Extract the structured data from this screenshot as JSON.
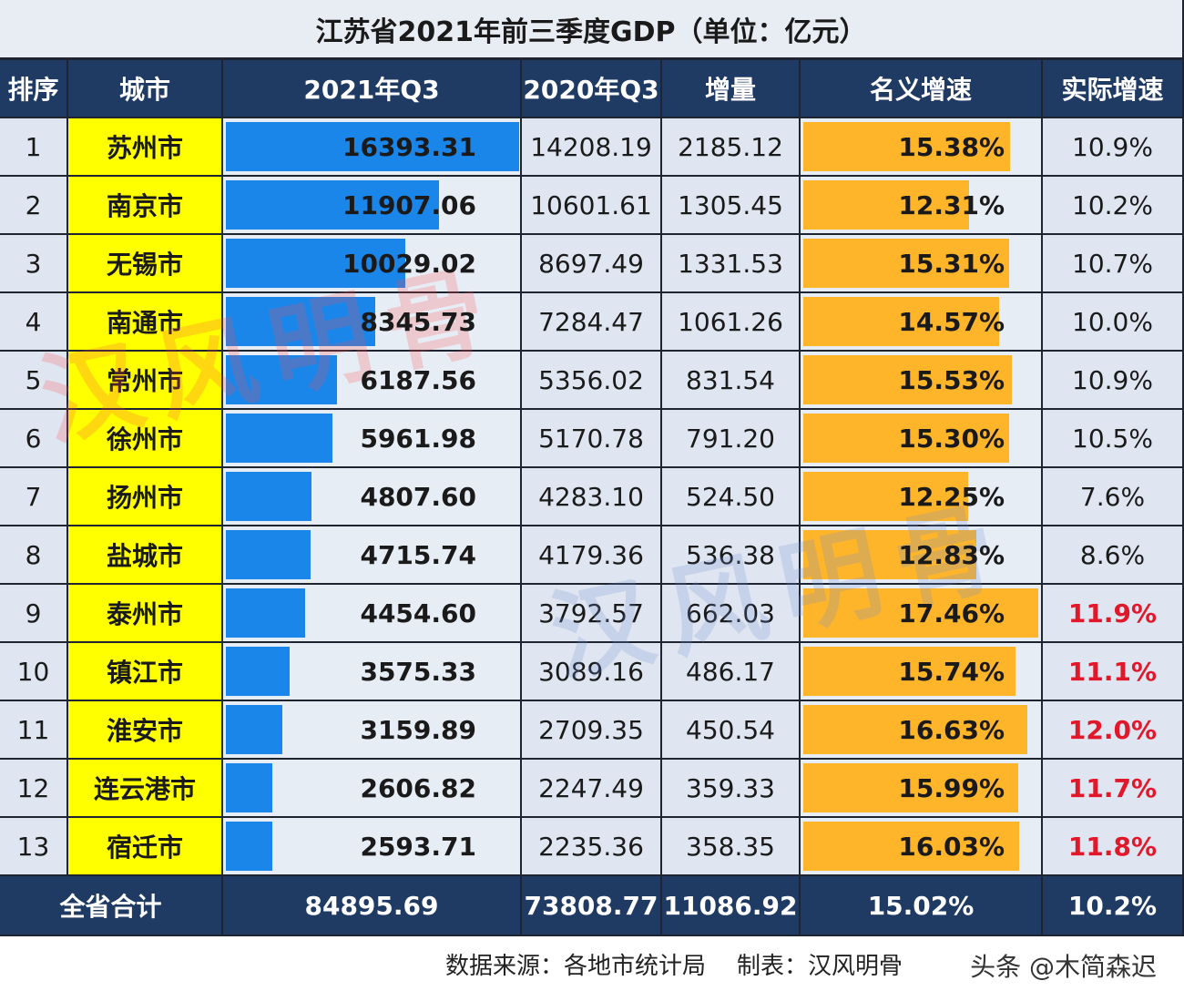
{
  "chart_data": {
    "type": "table",
    "title": "江苏省2021年前三季度GDP（单位：亿元）",
    "columns": [
      "排序",
      "城市",
      "2021年Q3",
      "2020年Q3",
      "增量",
      "名义增速",
      "实际增速"
    ],
    "rows": [
      {
        "rank": "1",
        "city": "苏州市",
        "q3_2021": 16393.31,
        "q3_2021_text": "16393.31",
        "q3_2020": "14208.19",
        "increase": "2185.12",
        "nominal": 15.38,
        "nominal_text": "15.38%",
        "real": "10.9%",
        "real_highlight": false
      },
      {
        "rank": "2",
        "city": "南京市",
        "q3_2021": 11907.06,
        "q3_2021_text": "11907.06",
        "q3_2020": "10601.61",
        "increase": "1305.45",
        "nominal": 12.31,
        "nominal_text": "12.31%",
        "real": "10.2%",
        "real_highlight": false
      },
      {
        "rank": "3",
        "city": "无锡市",
        "q3_2021": 10029.02,
        "q3_2021_text": "10029.02",
        "q3_2020": "8697.49",
        "increase": "1331.53",
        "nominal": 15.31,
        "nominal_text": "15.31%",
        "real": "10.7%",
        "real_highlight": false
      },
      {
        "rank": "4",
        "city": "南通市",
        "q3_2021": 8345.73,
        "q3_2021_text": "8345.73",
        "q3_2020": "7284.47",
        "increase": "1061.26",
        "nominal": 14.57,
        "nominal_text": "14.57%",
        "real": "10.0%",
        "real_highlight": false
      },
      {
        "rank": "5",
        "city": "常州市",
        "q3_2021": 6187.56,
        "q3_2021_text": "6187.56",
        "q3_2020": "5356.02",
        "increase": "831.54",
        "nominal": 15.53,
        "nominal_text": "15.53%",
        "real": "10.9%",
        "real_highlight": false
      },
      {
        "rank": "6",
        "city": "徐州市",
        "q3_2021": 5961.98,
        "q3_2021_text": "5961.98",
        "q3_2020": "5170.78",
        "increase": "791.20",
        "nominal": 15.3,
        "nominal_text": "15.30%",
        "real": "10.5%",
        "real_highlight": false
      },
      {
        "rank": "7",
        "city": "扬州市",
        "q3_2021": 4807.6,
        "q3_2021_text": "4807.60",
        "q3_2020": "4283.10",
        "increase": "524.50",
        "nominal": 12.25,
        "nominal_text": "12.25%",
        "real": "7.6%",
        "real_highlight": false
      },
      {
        "rank": "8",
        "city": "盐城市",
        "q3_2021": 4715.74,
        "q3_2021_text": "4715.74",
        "q3_2020": "4179.36",
        "increase": "536.38",
        "nominal": 12.83,
        "nominal_text": "12.83%",
        "real": "8.6%",
        "real_highlight": false
      },
      {
        "rank": "9",
        "city": "泰州市",
        "q3_2021": 4454.6,
        "q3_2021_text": "4454.60",
        "q3_2020": "3792.57",
        "increase": "662.03",
        "nominal": 17.46,
        "nominal_text": "17.46%",
        "real": "11.9%",
        "real_highlight": true
      },
      {
        "rank": "10",
        "city": "镇江市",
        "q3_2021": 3575.33,
        "q3_2021_text": "3575.33",
        "q3_2020": "3089.16",
        "increase": "486.17",
        "nominal": 15.74,
        "nominal_text": "15.74%",
        "real": "11.1%",
        "real_highlight": true
      },
      {
        "rank": "11",
        "city": "淮安市",
        "q3_2021": 3159.89,
        "q3_2021_text": "3159.89",
        "q3_2020": "2709.35",
        "increase": "450.54",
        "nominal": 16.63,
        "nominal_text": "16.63%",
        "real": "12.0%",
        "real_highlight": true
      },
      {
        "rank": "12",
        "city": "连云港市",
        "q3_2021": 2606.82,
        "q3_2021_text": "2606.82",
        "q3_2020": "2247.49",
        "increase": "359.33",
        "nominal": 15.99,
        "nominal_text": "15.99%",
        "real": "11.7%",
        "real_highlight": true
      },
      {
        "rank": "13",
        "city": "宿迁市",
        "q3_2021": 2593.71,
        "q3_2021_text": "2593.71",
        "q3_2020": "2235.36",
        "increase": "358.35",
        "nominal": 16.03,
        "nominal_text": "16.03%",
        "real": "11.8%",
        "real_highlight": true
      }
    ],
    "total": {
      "label": "全省合计",
      "q3_2021": "84895.69",
      "q3_2020": "73808.77",
      "increase": "11086.92",
      "nominal": "15.02%",
      "real": "10.2%"
    },
    "bar_scale_max": {
      "q3_2021": 16393.31,
      "nominal": 17.46
    },
    "colors": {
      "header": "#1f3a63",
      "city_highlight": "#ffff00",
      "gdp_bar": "#1a86ea",
      "rate_bar": "#ffb52a",
      "real_highlight_text": "#e0182a"
    }
  },
  "footer": {
    "source": "数据来源：各地市统计局",
    "maker": "制表：汉风明骨",
    "tag": "头条 @木简森迟"
  },
  "watermark": {
    "text": "汉风明骨"
  }
}
